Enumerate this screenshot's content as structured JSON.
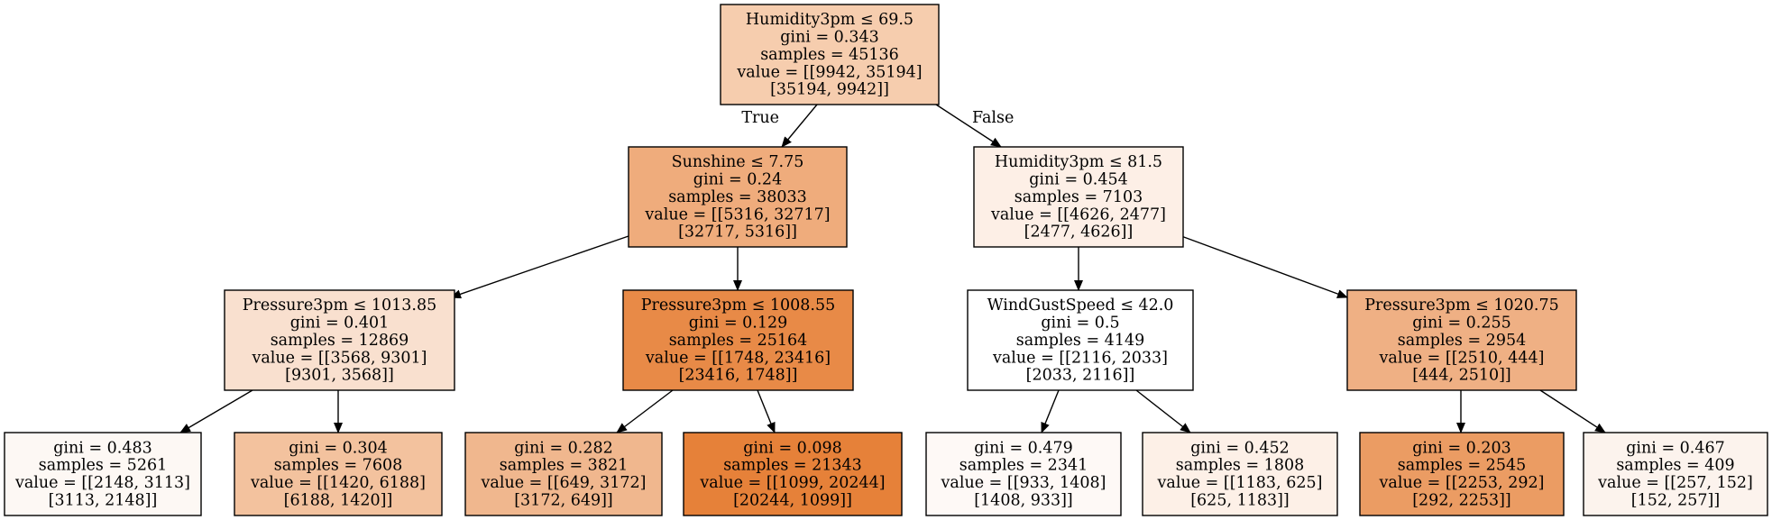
{
  "colors": {
    "edge": "#000000",
    "border": "#000000"
  },
  "edge_labels": {
    "true": "True",
    "false": "False"
  },
  "nodes": [
    {
      "id": "n0",
      "fill": "#f6cdae",
      "lines": [
        "Humidity3pm ≤ 69.5",
        "gini = 0.343",
        "samples = 45136",
        "value = [[9942, 35194]",
        "[35194, 9942]]"
      ]
    },
    {
      "id": "n1",
      "fill": "#efac7c",
      "lines": [
        "Sunshine ≤ 7.75",
        "gini = 0.24",
        "samples = 38033",
        "value = [[5316, 32717]",
        "[32717, 5316]]"
      ]
    },
    {
      "id": "n2",
      "fill": "#fdefe6",
      "lines": [
        "Humidity3pm ≤ 81.5",
        "gini = 0.454",
        "samples = 7103",
        "value = [[4626, 2477]",
        "[2477, 4626]]"
      ]
    },
    {
      "id": "n3",
      "fill": "#f9e0cf",
      "lines": [
        "Pressure3pm ≤ 1013.85",
        "gini = 0.401",
        "samples = 12869",
        "value = [[3568, 9301]",
        "[9301, 3568]]"
      ]
    },
    {
      "id": "n4",
      "fill": "#e88a47",
      "lines": [
        "Pressure3pm ≤ 1008.55",
        "gini = 0.129",
        "samples = 25164",
        "value = [[1748, 23416]",
        "[23416, 1748]]"
      ]
    },
    {
      "id": "n5",
      "fill": "#ffffff",
      "lines": [
        "WindGustSpeed ≤ 42.0",
        "gini = 0.5",
        "samples = 4149",
        "value = [[2116, 2033]",
        "[2033, 2116]]"
      ]
    },
    {
      "id": "n6",
      "fill": "#efb084",
      "lines": [
        "Pressure3pm ≤ 1020.75",
        "gini = 0.255",
        "samples = 2954",
        "value = [[2510, 444]",
        "[444, 2510]]"
      ]
    },
    {
      "id": "n7",
      "fill": "#fdf8f4",
      "lines": [
        "gini = 0.483",
        "samples = 5261",
        "value = [[2148, 3113]",
        "[3113, 2148]]"
      ]
    },
    {
      "id": "n8",
      "fill": "#f3c29e",
      "lines": [
        "gini = 0.304",
        "samples = 7608",
        "value = [[1420, 6188]",
        "[6188, 1420]]"
      ]
    },
    {
      "id": "n9",
      "fill": "#f0b78e",
      "lines": [
        "gini = 0.282",
        "samples = 3821",
        "value = [[649, 3172]",
        "[3172, 649]]"
      ]
    },
    {
      "id": "n10",
      "fill": "#e68139",
      "lines": [
        "gini = 0.098",
        "samples = 21343",
        "value = [[1099, 20244]",
        "[20244, 1099]]"
      ]
    },
    {
      "id": "n11",
      "fill": "#fef9f6",
      "lines": [
        "gini = 0.479",
        "samples = 2341",
        "value = [[933, 1408]",
        "[1408, 933]]"
      ]
    },
    {
      "id": "n12",
      "fill": "#fdf0e7",
      "lines": [
        "gini = 0.452",
        "samples = 1808",
        "value = [[1183, 625]",
        "[625, 1183]]"
      ]
    },
    {
      "id": "n13",
      "fill": "#eb9c63",
      "lines": [
        "gini = 0.203",
        "samples = 2545",
        "value = [[2253, 292]",
        "[292, 2253]]"
      ]
    },
    {
      "id": "n14",
      "fill": "#fcf3ed",
      "lines": [
        "gini = 0.467",
        "samples = 409",
        "value = [[257, 152]",
        "[152, 257]]"
      ]
    }
  ],
  "edges": [
    {
      "from": "n0",
      "to": "n1",
      "label": "true"
    },
    {
      "from": "n0",
      "to": "n2",
      "label": "false"
    },
    {
      "from": "n1",
      "to": "n3"
    },
    {
      "from": "n1",
      "to": "n4"
    },
    {
      "from": "n2",
      "to": "n5"
    },
    {
      "from": "n2",
      "to": "n6"
    },
    {
      "from": "n3",
      "to": "n7"
    },
    {
      "from": "n3",
      "to": "n8"
    },
    {
      "from": "n4",
      "to": "n9"
    },
    {
      "from": "n4",
      "to": "n10"
    },
    {
      "from": "n5",
      "to": "n11"
    },
    {
      "from": "n5",
      "to": "n12"
    },
    {
      "from": "n6",
      "to": "n13"
    },
    {
      "from": "n6",
      "to": "n14"
    }
  ]
}
